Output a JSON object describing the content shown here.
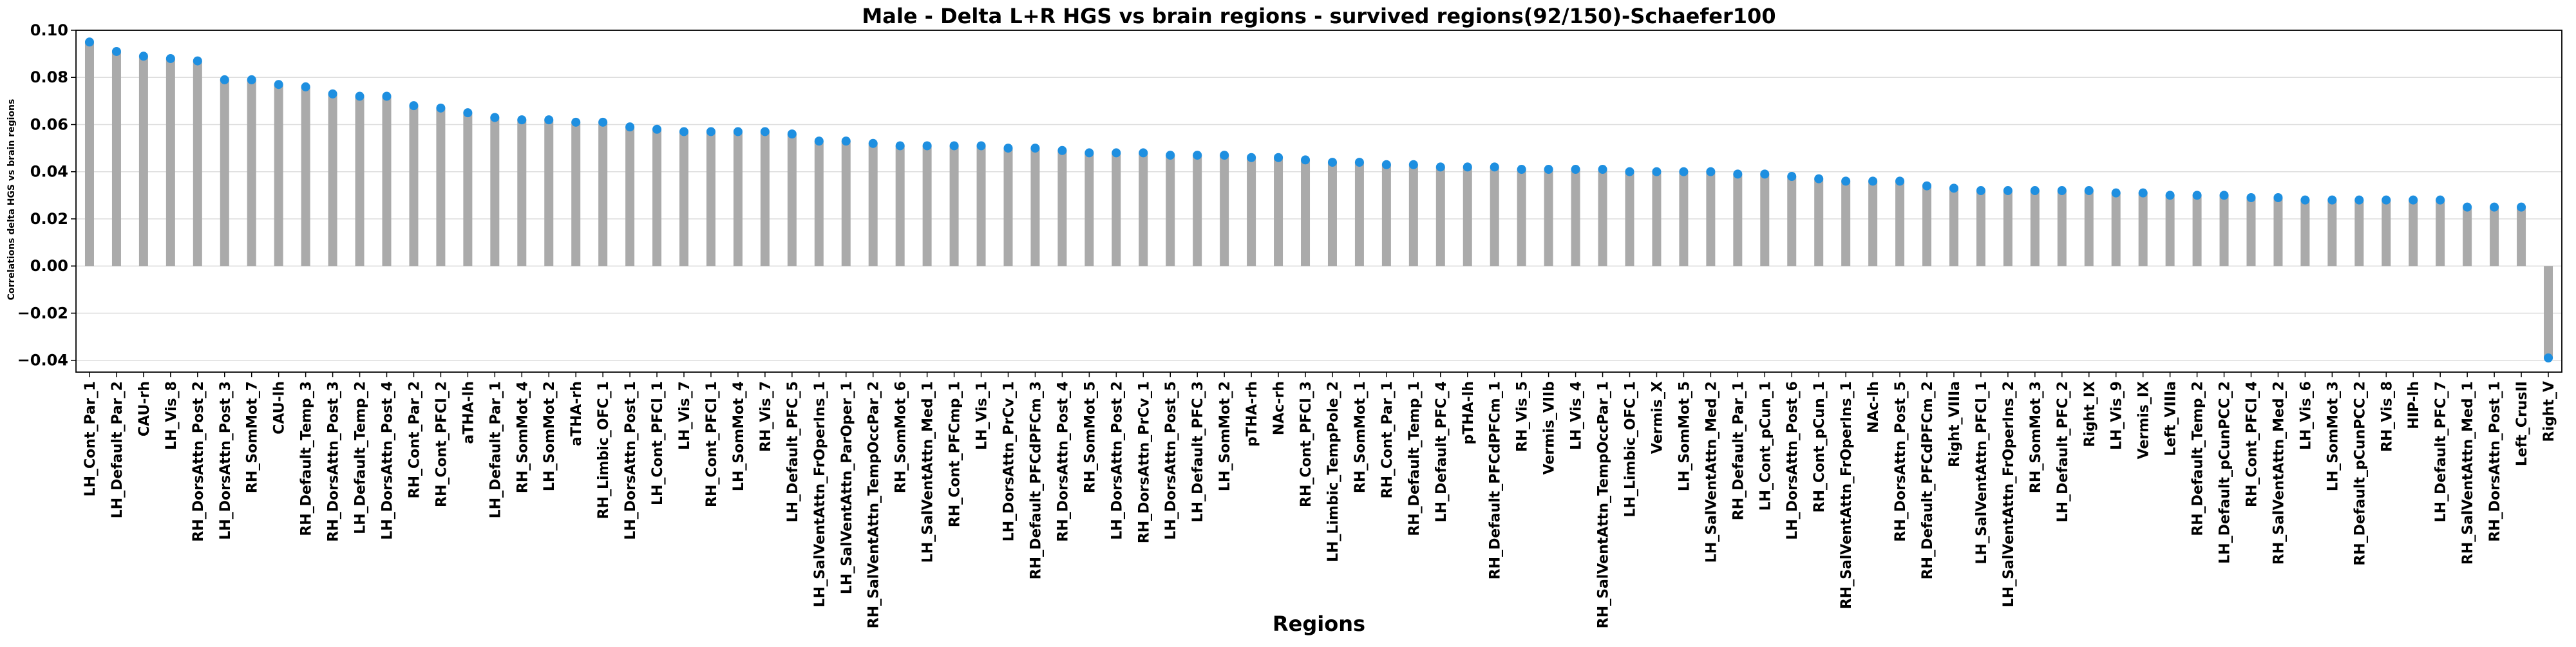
{
  "chart_data": {
    "type": "bar",
    "title": "Male - Delta L+R HGS vs brain regions - survived regions(92/150)-Schaefer100",
    "xlabel": "Regions",
    "ylabel": "Correlations delta HGS vs brain regions",
    "ylim": [
      -0.045,
      0.1
    ],
    "yticks": [
      {
        "value": 0.1,
        "label": "0.10"
      },
      {
        "value": 0.08,
        "label": "0.08"
      },
      {
        "value": 0.06,
        "label": "0.06"
      },
      {
        "value": 0.04,
        "label": "0.04"
      },
      {
        "value": 0.02,
        "label": "0.02"
      },
      {
        "value": 0.0,
        "label": "0.00"
      },
      {
        "value": -0.02,
        "label": "−0.02"
      },
      {
        "value": -0.04,
        "label": "−0.04"
      }
    ],
    "grid": true,
    "bar_color": "#aaaaaa",
    "marker_color": "#1e8fe0",
    "categories": [
      "LH_Cont_Par_1",
      "LH_Default_Par_2",
      "CAU-rh",
      "LH_Vis_8",
      "RH_DorsAttn_Post_2",
      "LH_DorsAttn_Post_3",
      "RH_SomMot_7",
      "CAU-lh",
      "RH_Default_Temp_3",
      "RH_DorsAttn_Post_3",
      "LH_Default_Temp_2",
      "LH_DorsAttn_Post_4",
      "RH_Cont_Par_2",
      "RH_Cont_PFCl_2",
      "aTHA-lh",
      "LH_Default_Par_1",
      "RH_SomMot_4",
      "LH_SomMot_2",
      "aTHA-rh",
      "RH_Limbic_OFC_1",
      "LH_DorsAttn_Post_1",
      "LH_Cont_PFCl_1",
      "LH_Vis_7",
      "RH_Cont_PFCl_1",
      "LH_SomMot_4",
      "RH_Vis_7",
      "LH_Default_PFC_5",
      "LH_SalVentAttn_FrOperIns_1",
      "LH_SalVentAttn_ParOper_1",
      "RH_SalVentAttn_TempOccPar_2",
      "RH_SomMot_6",
      "LH_SalVentAttn_Med_1",
      "RH_Cont_PFCmp_1",
      "LH_Vis_1",
      "LH_DorsAttn_PrCv_1",
      "RH_Default_PFCdPFCm_3",
      "RH_DorsAttn_Post_4",
      "RH_SomMot_5",
      "LH_DorsAttn_Post_2",
      "RH_DorsAttn_PrCv_1",
      "LH_DorsAttn_Post_5",
      "LH_Default_PFC_3",
      "LH_SomMot_2",
      "pTHA-rh",
      "NAc-rh",
      "RH_Cont_PFCl_3",
      "LH_Limbic_TempPole_2",
      "RH_SomMot_1",
      "RH_Cont_Par_1",
      "RH_Default_Temp_1",
      "LH_Default_PFC_4",
      "pTHA-lh",
      "RH_Default_PFCdPFCm_1",
      "RH_Vis_5",
      "Vermis_VIIb",
      "LH_Vis_4",
      "RH_SalVentAttn_TempOccPar_1",
      "LH_Limbic_OFC_1",
      "Vermis_X",
      "LH_SomMot_5",
      "LH_SalVentAttn_Med_2",
      "RH_Default_Par_1",
      "LH_Cont_pCun_1",
      "LH_DorsAttn_Post_6",
      "RH_Cont_pCun_1",
      "RH_SalVentAttn_FrOperIns_1",
      "NAc-lh",
      "RH_DorsAttn_Post_5",
      "RH_Default_PFCdPFCm_2",
      "Right_VIIIa",
      "LH_SalVentAttn_PFCl_1",
      "LH_SalVentAttn_FrOperIns_2",
      "RH_SomMot_3",
      "LH_Default_PFC_2",
      "Right_IX",
      "LH_Vis_9",
      "Vermis_IX",
      "Left_VIIIa",
      "RH_Default_Temp_2",
      "LH_Default_pCunPCC_2",
      "RH_Cont_PFCl_4",
      "RH_SalVentAttn_Med_2",
      "LH_Vis_6",
      "LH_SomMot_3",
      "RH_Default_pCunPCC_2",
      "RH_Vis_8",
      "HIP-lh",
      "LH_Default_PFC_7",
      "RH_SalVentAttn_Med_1",
      "RH_DorsAttn_Post_1",
      "Left_CrusII",
      "Right_V"
    ],
    "values": [
      0.095,
      0.091,
      0.089,
      0.088,
      0.087,
      0.079,
      0.079,
      0.077,
      0.076,
      0.073,
      0.072,
      0.072,
      0.068,
      0.067,
      0.065,
      0.063,
      0.062,
      0.062,
      0.061,
      0.061,
      0.059,
      0.058,
      0.057,
      0.057,
      0.057,
      0.057,
      0.056,
      0.053,
      0.053,
      0.052,
      0.051,
      0.051,
      0.051,
      0.051,
      0.05,
      0.05,
      0.049,
      0.048,
      0.048,
      0.048,
      0.047,
      0.047,
      0.047,
      0.046,
      0.046,
      0.045,
      0.044,
      0.044,
      0.043,
      0.043,
      0.042,
      0.042,
      0.042,
      0.041,
      0.041,
      0.041,
      0.041,
      0.04,
      0.04,
      0.04,
      0.04,
      0.039,
      0.039,
      0.038,
      0.037,
      0.036,
      0.036,
      0.036,
      0.034,
      0.033,
      0.032,
      0.032,
      0.032,
      0.032,
      0.032,
      0.031,
      0.031,
      0.03,
      0.03,
      0.03,
      0.029,
      0.029,
      0.028,
      0.028,
      0.028,
      0.028,
      0.028,
      0.028,
      0.025,
      0.025,
      0.025,
      -0.039
    ]
  }
}
